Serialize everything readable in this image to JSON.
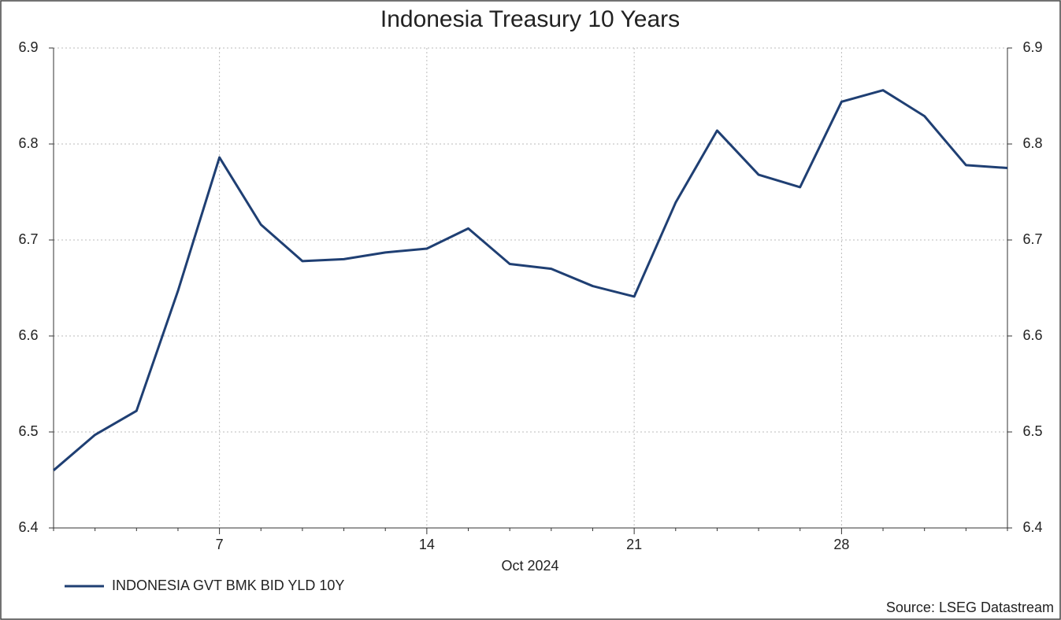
{
  "chart_data": {
    "type": "line",
    "title": "Indonesia Treasury 10 Years",
    "x_label": "Oct 2024",
    "categories": [
      null,
      null,
      null,
      null,
      "7",
      null,
      null,
      null,
      null,
      "14",
      null,
      null,
      null,
      null,
      "21",
      null,
      null,
      null,
      null,
      "28",
      null,
      null,
      null,
      null
    ],
    "series": [
      {
        "name": "INDONESIA GVT BMK BID YLD 10Y",
        "color": "#1f3f73",
        "values": [
          6.46,
          6.497,
          6.522,
          6.647,
          6.786,
          6.716,
          6.678,
          6.68,
          6.687,
          6.691,
          6.712,
          6.675,
          6.67,
          6.652,
          6.641,
          6.739,
          6.814,
          6.768,
          6.755,
          6.844,
          6.856,
          6.829,
          6.778,
          6.775
        ]
      }
    ],
    "ylim": [
      6.4,
      6.9
    ],
    "yticks": [
      6.4,
      6.5,
      6.6,
      6.7,
      6.8,
      6.9
    ],
    "y2lim": [
      6.4,
      6.9
    ],
    "y2ticks": [
      6.4,
      6.5,
      6.6,
      6.7,
      6.8,
      6.9
    ],
    "grid": true,
    "legend": "bottom-left",
    "source": "Source: LSEG Datastream"
  }
}
